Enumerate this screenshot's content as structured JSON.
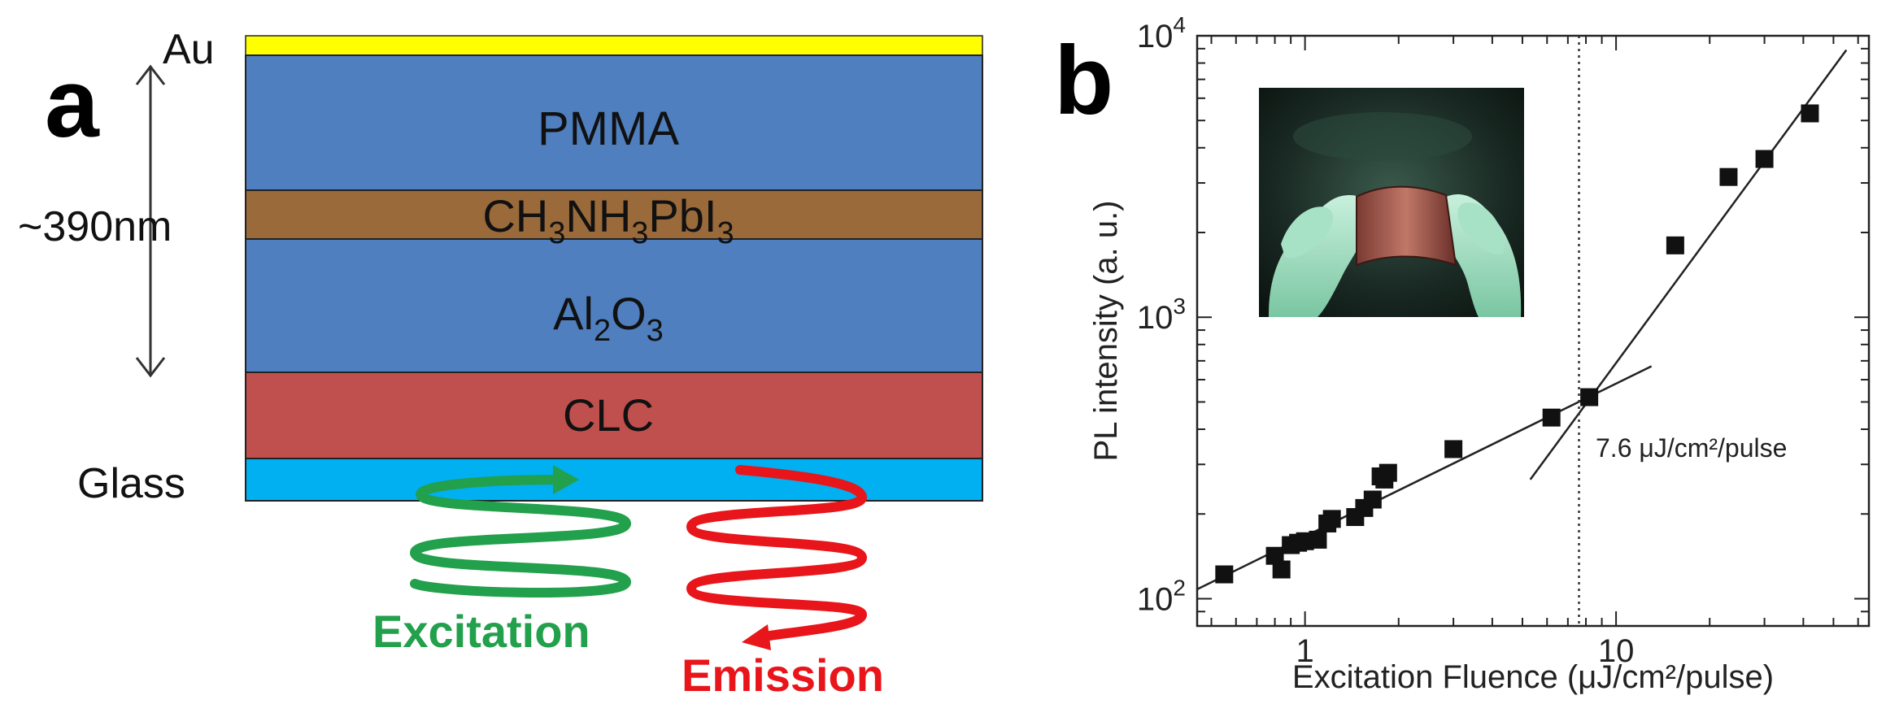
{
  "panel_a": {
    "letter": "a",
    "thickness_label": "~390nm",
    "layers": [
      {
        "label": "Au",
        "color": "#ffff00"
      },
      {
        "label": "PMMA",
        "color": "#4f7fbf"
      },
      {
        "label": "CH3NH3PbI3",
        "color": "#9a6a3a"
      },
      {
        "label": "Al2O3",
        "color": "#4f7fbf"
      },
      {
        "label": "CLC",
        "color": "#c0504d"
      },
      {
        "label": "Glass",
        "color": "#00b0f0"
      }
    ],
    "perovskite_formula": {
      "a": "CH",
      "a_sub": "3",
      "b": "NH",
      "b_sub": "3",
      "c": "PbI",
      "c_sub": "3"
    },
    "alumina_formula": {
      "a": "Al",
      "a_sub": "2",
      "b": "O",
      "b_sub": "3"
    },
    "excitation_label": "Excitation",
    "emission_label": "Emission",
    "excitation_color": "#22a04b",
    "emission_color": "#e8151b"
  },
  "panel_b": {
    "letter": "b",
    "chart_data": {
      "type": "scatter",
      "x_scale": "log",
      "y_scale": "log",
      "xlim": [
        0.45,
        65
      ],
      "ylim": [
        80,
        10000
      ],
      "xlabel": "Excitation Fluence (μJ/cm²/pulse)",
      "ylabel": "PL intensity (a. u.)",
      "xticks": [
        {
          "value": 1,
          "label": "1"
        },
        {
          "value": 10,
          "label": "10"
        }
      ],
      "yticks": [
        {
          "value": 100,
          "base": "10",
          "exp": "2"
        },
        {
          "value": 1000,
          "base": "10",
          "exp": "3"
        },
        {
          "value": 10000,
          "base": "10",
          "exp": "4"
        }
      ],
      "points": [
        [
          0.55,
          122
        ],
        [
          0.8,
          142
        ],
        [
          0.84,
          127
        ],
        [
          0.9,
          155
        ],
        [
          0.95,
          158
        ],
        [
          1.0,
          160
        ],
        [
          1.1,
          162
        ],
        [
          1.18,
          185
        ],
        [
          1.22,
          192
        ],
        [
          1.45,
          195
        ],
        [
          1.55,
          210
        ],
        [
          1.65,
          225
        ],
        [
          1.75,
          272
        ],
        [
          1.8,
          265
        ],
        [
          1.85,
          280
        ],
        [
          3.0,
          340
        ],
        [
          6.2,
          440
        ],
        [
          8.2,
          520
        ],
        [
          15.5,
          1800
        ],
        [
          23,
          3150
        ],
        [
          30,
          3650
        ],
        [
          42,
          5300
        ]
      ],
      "fit_lines": [
        {
          "from": [
            0.45,
            108
          ],
          "to": [
            13,
            670
          ]
        },
        {
          "from": [
            5.3,
            265
          ],
          "to": [
            55,
            8900
          ]
        }
      ],
      "threshold": {
        "x": 7.6,
        "label": "7.6 μJ/cm²/pulse"
      },
      "grid": false
    },
    "inset": "photo of a flexible device held between gloved fingers"
  }
}
